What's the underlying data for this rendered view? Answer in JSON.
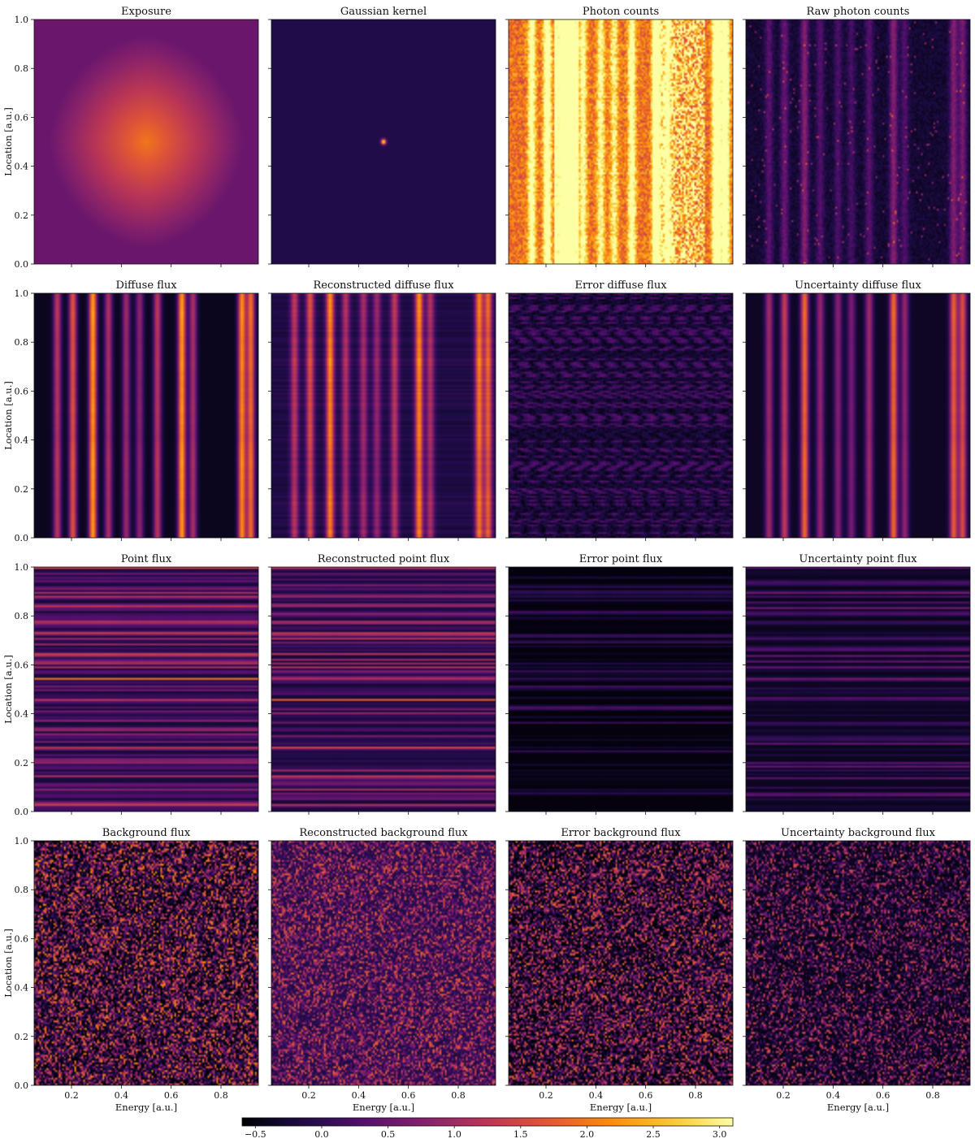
{
  "chart_data": {
    "type": "heatmap",
    "layout": {
      "rows": 4,
      "cols": 4
    },
    "colormap": "inferno",
    "x_axis": {
      "label": "Energy [a.u.]",
      "range": [
        0.05,
        0.95
      ],
      "ticks": [
        0.2,
        0.4,
        0.6,
        0.8
      ],
      "tick_labels": [
        "0.2",
        "0.4",
        "0.6",
        "0.8"
      ]
    },
    "y_axis": {
      "label": "Location [a.u.]",
      "range": [
        0.0,
        1.0
      ],
      "ticks": [
        0.0,
        0.2,
        0.4,
        0.6,
        0.8,
        1.0
      ],
      "tick_labels": [
        "0.0",
        "0.2",
        "0.4",
        "0.6",
        "0.8",
        "1.0"
      ]
    },
    "colorbar": {
      "range": [
        -0.6,
        3.1
      ],
      "ticks": [
        -0.5,
        0.0,
        0.5,
        1.0,
        1.5,
        2.0,
        2.5,
        3.0
      ],
      "tick_labels": [
        "−0.5",
        "0.0",
        "0.5",
        "1.0",
        "1.5",
        "2.0",
        "2.5",
        "3.0"
      ],
      "orientation": "horizontal",
      "position": "bottom"
    },
    "panels": [
      {
        "title": "Exposure",
        "pattern": "radial"
      },
      {
        "title": "Gaussian kernel",
        "pattern": "kernel"
      },
      {
        "title": "Photon counts",
        "pattern": "counts"
      },
      {
        "title": "Raw photon counts",
        "pattern": "rawcounts"
      },
      {
        "title": "Diffuse flux",
        "pattern": "vstripes"
      },
      {
        "title": "Reconstructed diffuse flux",
        "pattern": "vstripes_recon"
      },
      {
        "title": "Error diffuse flux",
        "pattern": "vstripes_error"
      },
      {
        "title": "Uncertainty diffuse flux",
        "pattern": "vstripes_unc"
      },
      {
        "title": "Point flux",
        "pattern": "hstripes"
      },
      {
        "title": "Reconstructed point flux",
        "pattern": "hstripes_recon"
      },
      {
        "title": "Error point flux",
        "pattern": "hstripes_error"
      },
      {
        "title": "Uncertainty point flux",
        "pattern": "hstripes_unc"
      },
      {
        "title": "Background flux",
        "pattern": "noise"
      },
      {
        "title": "Reconstructed background flux",
        "pattern": "noise_recon"
      },
      {
        "title": "Error background flux",
        "pattern": "noise_error"
      },
      {
        "title": "Uncertainty background flux",
        "pattern": "noise_unc"
      }
    ]
  }
}
